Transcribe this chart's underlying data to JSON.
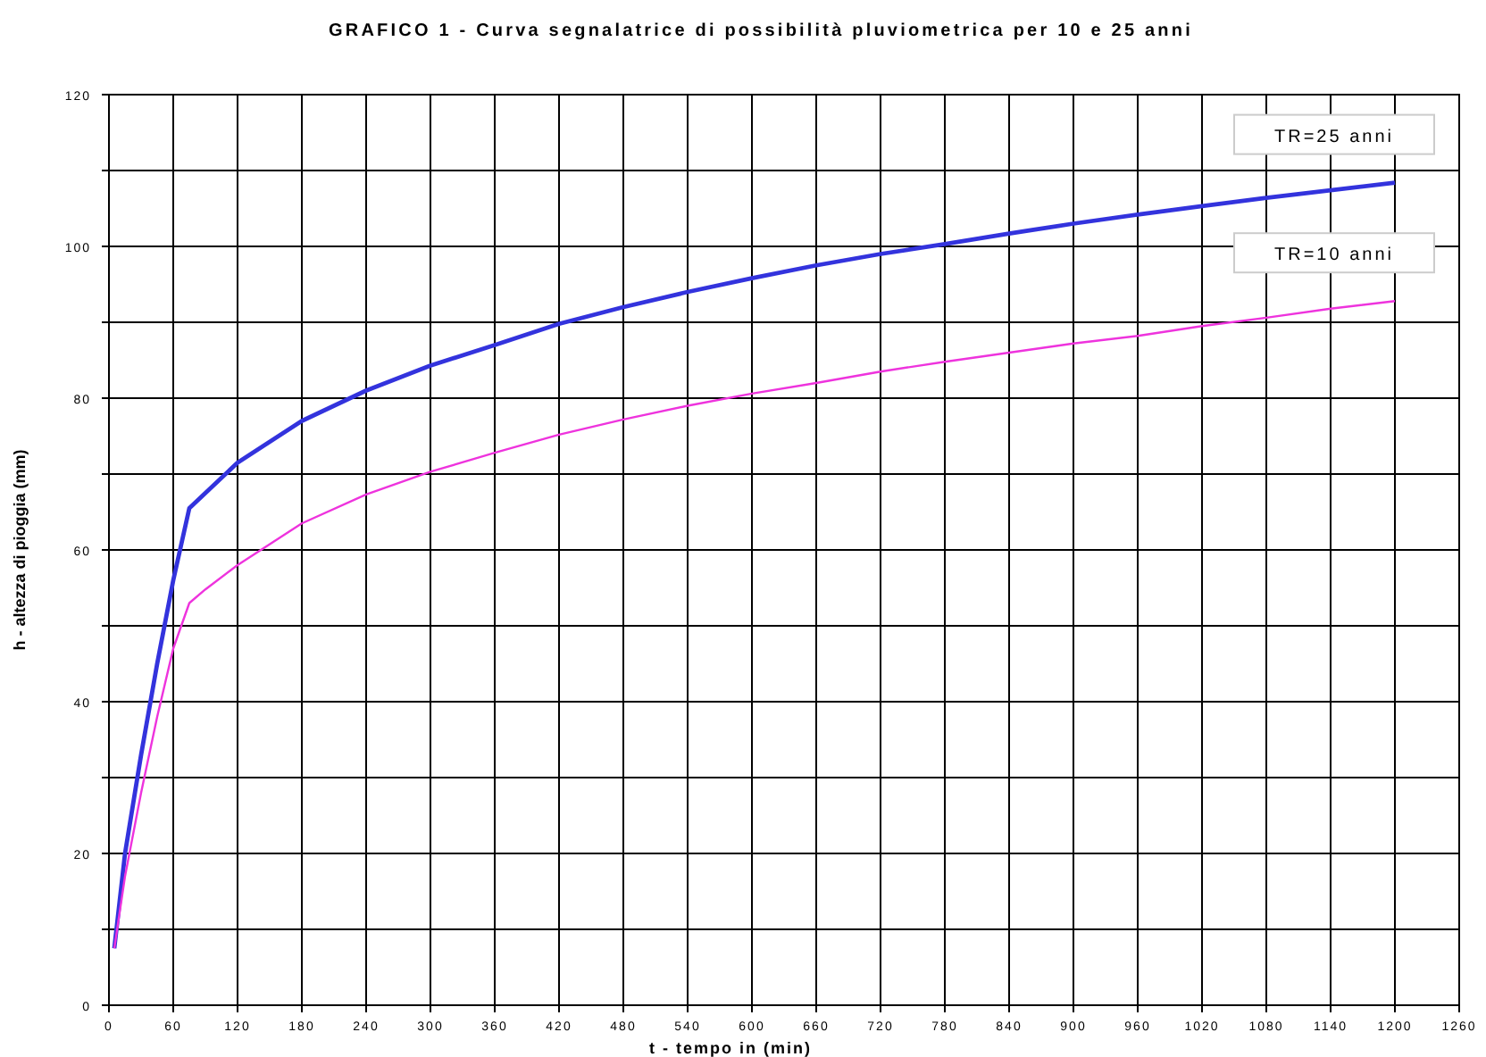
{
  "chart_data": {
    "type": "line",
    "title": "GRAFICO 1 - Curva segnalatrice di possibilità pluviometrica per 10 e 25 anni",
    "xlabel": "t - tempo in (min)",
    "ylabel": "h - altezza di pioggia (mm)",
    "xlim": [
      0,
      1260
    ],
    "xticks": [
      0,
      60,
      120,
      180,
      240,
      300,
      360,
      420,
      480,
      540,
      600,
      660,
      720,
      780,
      840,
      900,
      960,
      1020,
      1080,
      1140,
      1200,
      1260
    ],
    "ylim": [
      0,
      120
    ],
    "yticks": [
      0,
      {
        "value": 10,
        "label": null
      },
      20,
      {
        "value": 30,
        "label": null
      },
      40,
      {
        "value": 50,
        "label": null
      },
      60,
      {
        "value": 70,
        "label": null
      },
      80,
      {
        "value": 90,
        "label": null
      },
      100,
      {
        "value": 110,
        "label": null
      },
      120
    ],
    "grid": true,
    "marker": "none",
    "line_style": "solid",
    "x": [
      5,
      15,
      30,
      45,
      60,
      75,
      90,
      120,
      180,
      240,
      300,
      360,
      420,
      480,
      540,
      600,
      660,
      720,
      780,
      840,
      900,
      960,
      1020,
      1080,
      1140,
      1200
    ],
    "series": [
      {
        "name": "TR=25 anni",
        "color": "#3333dd",
        "values": [
          7.5,
          20,
          33,
          45,
          56,
          65.5,
          67.5,
          71.5,
          77,
          81,
          84.3,
          87,
          89.8,
          92,
          94,
          95.8,
          97.5,
          99,
          100.3,
          101.7,
          103,
          104.2,
          105.3,
          106.4,
          107.4,
          108.4
        ]
      },
      {
        "name": "TR=10 anni",
        "color": "#ee33dd",
        "values": [
          7.5,
          17,
          28,
          38,
          47,
          53,
          54.8,
          58,
          63.5,
          67.3,
          70.3,
          72.8,
          75.2,
          77.2,
          79,
          80.6,
          82,
          83.5,
          84.8,
          86,
          87.2,
          88.2,
          89.5,
          90.6,
          91.8,
          92.8
        ]
      }
    ]
  }
}
